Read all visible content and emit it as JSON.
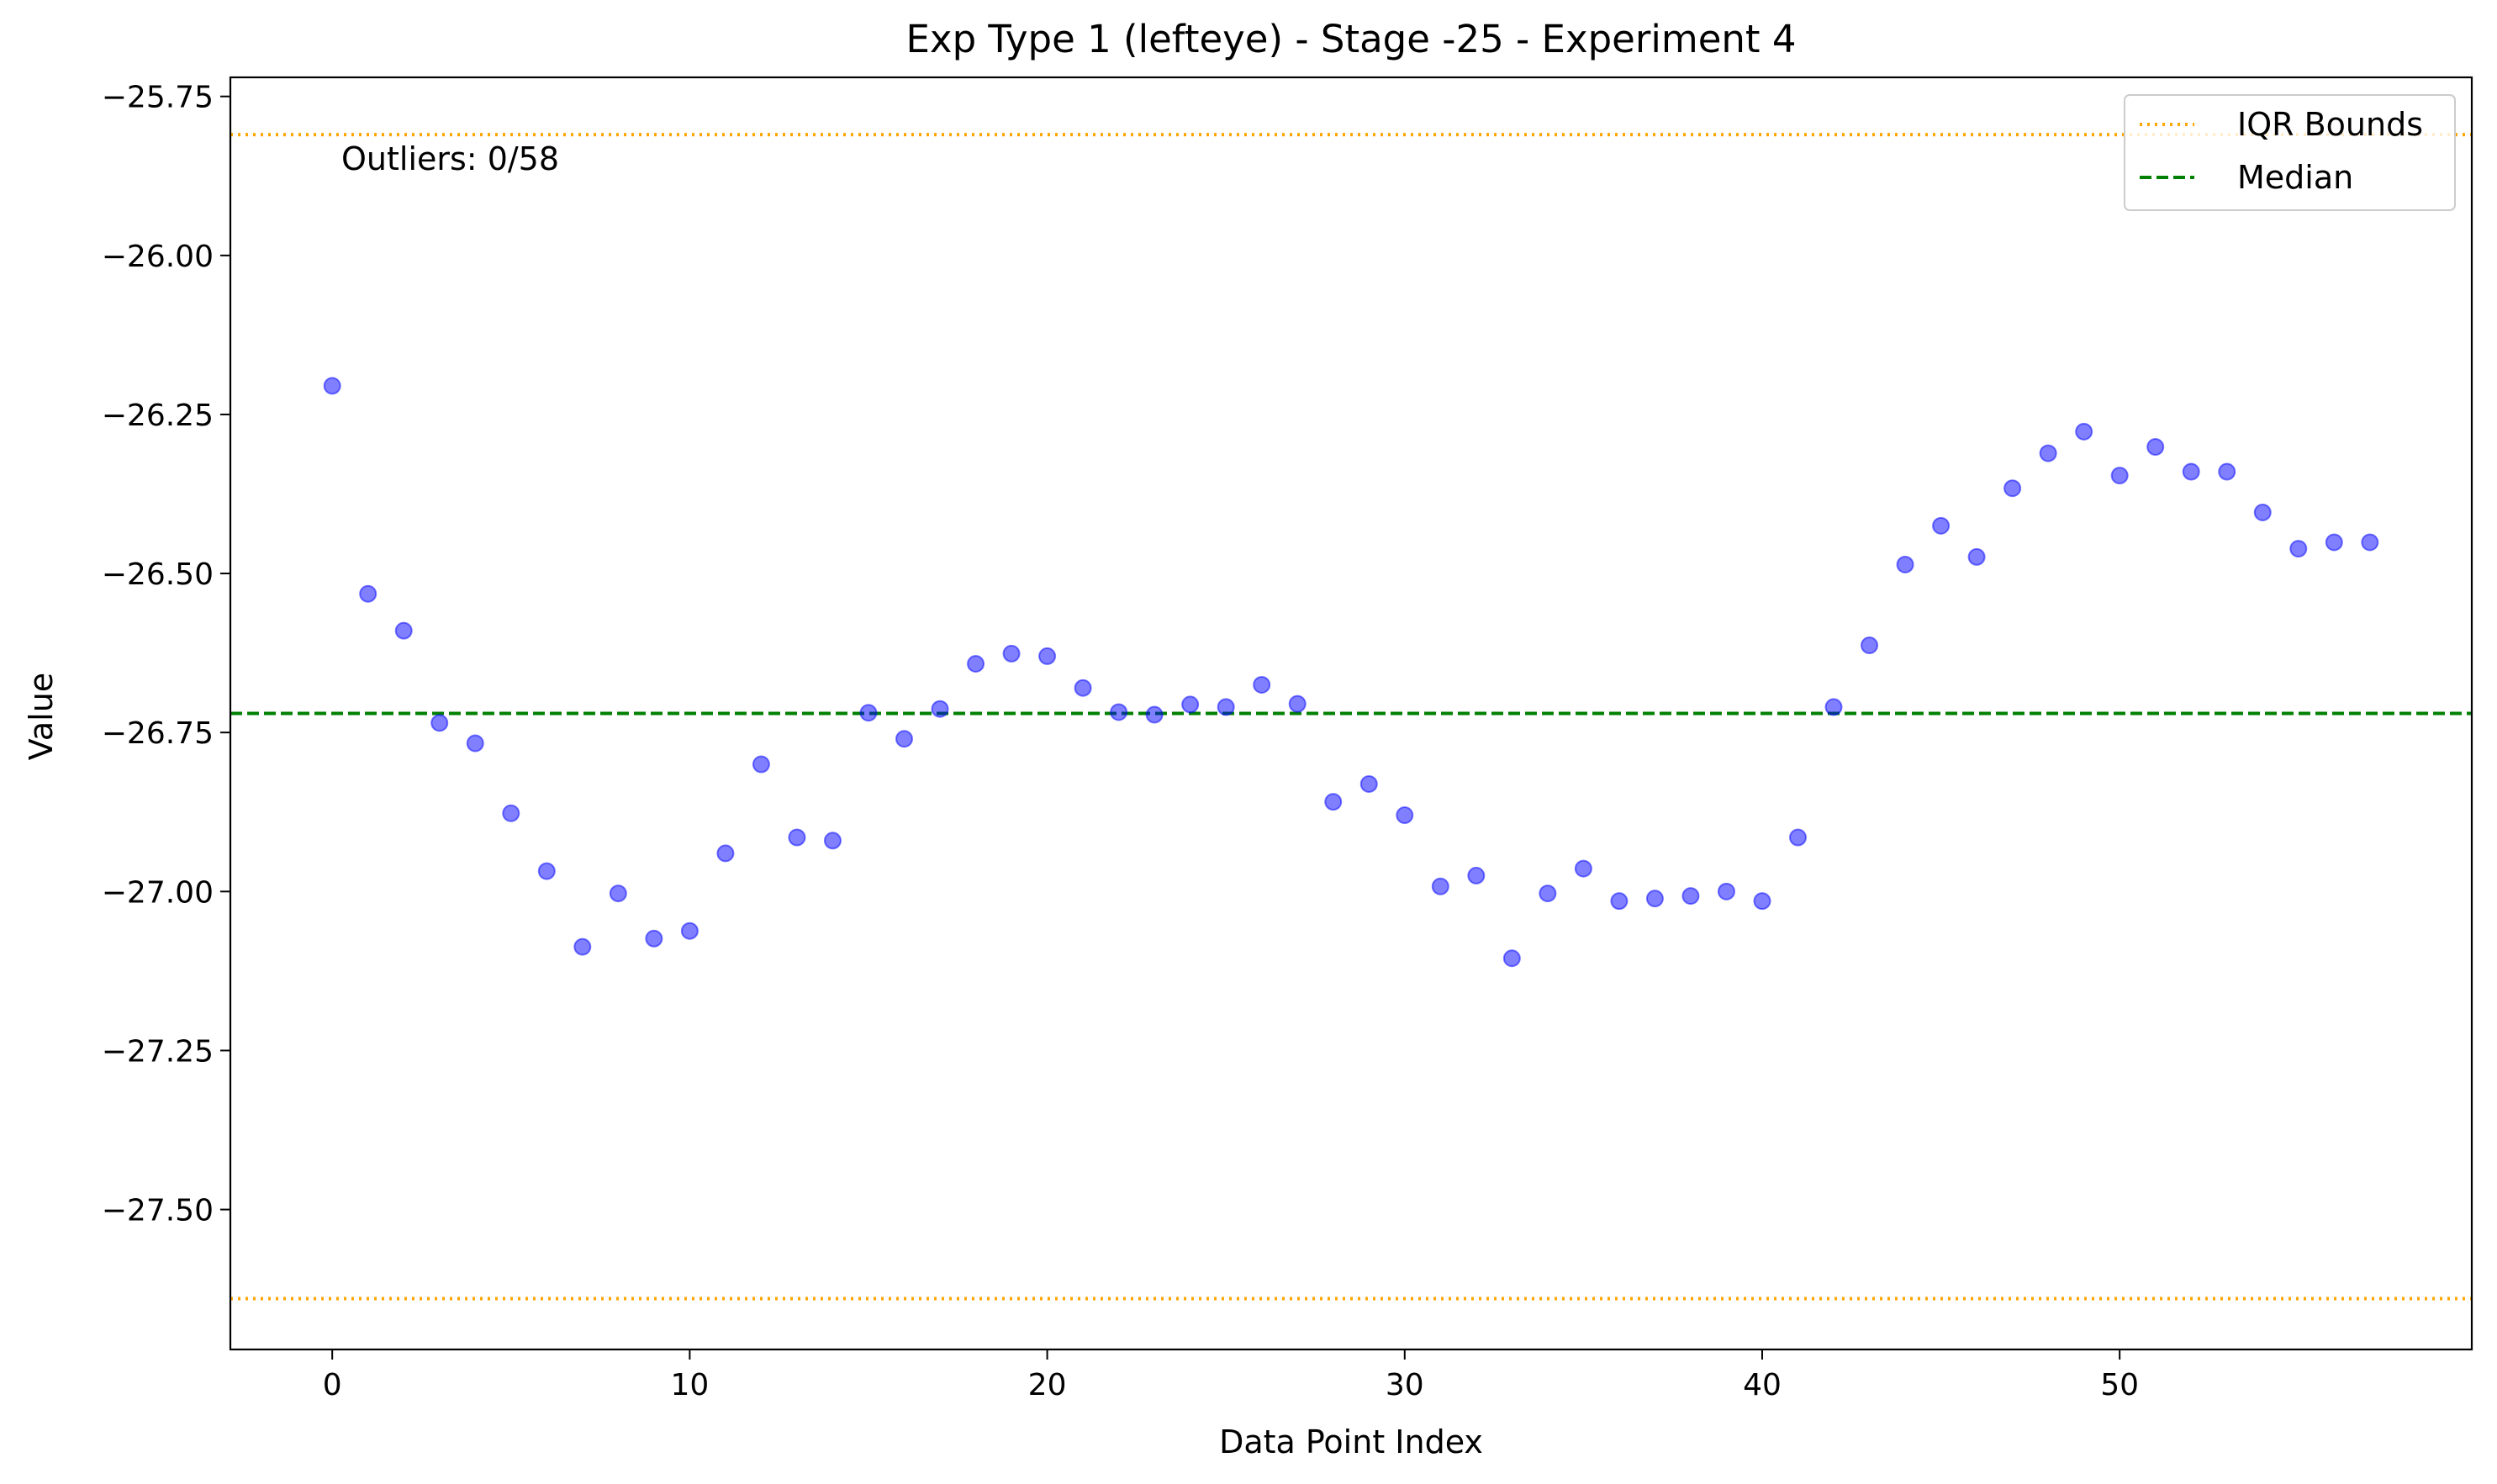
{
  "chart_data": {
    "type": "scatter",
    "title": "Exp Type 1 (lefteye) - Stage -25 - Experiment 4",
    "xlabel": "Data Point Index",
    "ylabel": "Value",
    "xlim": [
      -2.85,
      59.85
    ],
    "ylim": [
      -27.72,
      -25.72
    ],
    "xticks": [
      0,
      10,
      20,
      30,
      40,
      50
    ],
    "xtick_labels": [
      "0",
      "10",
      "20",
      "30",
      "40",
      "50"
    ],
    "yticks": [
      -25.75,
      -26.0,
      -26.25,
      -26.5,
      -26.75,
      -27.0,
      -27.25,
      -27.5
    ],
    "ytick_labels": [
      "−25.75",
      "−26.00",
      "−26.25",
      "−26.50",
      "−26.75",
      "−27.00",
      "−27.25",
      "−27.50"
    ],
    "grid": false,
    "legend_position": "top-right",
    "annotation": "Outliers: 0/58",
    "reference_lines": {
      "iqr_upper": -25.81,
      "iqr_lower": -27.64,
      "median": -26.72
    },
    "series": [
      {
        "name": "",
        "color": "#0000ff",
        "x": [
          0,
          1,
          2,
          3,
          4,
          5,
          6,
          7,
          8,
          9,
          10,
          11,
          12,
          13,
          14,
          15,
          16,
          17,
          18,
          19,
          20,
          21,
          22,
          23,
          24,
          25,
          26,
          27,
          28,
          29,
          30,
          31,
          32,
          33,
          34,
          35,
          36,
          37,
          38,
          39,
          40,
          41,
          42,
          43,
          44,
          45,
          46,
          47,
          48,
          49,
          50,
          51,
          52,
          53,
          54,
          55,
          56,
          57
        ],
        "y": [
          -26.205,
          -26.532,
          -26.59,
          -26.735,
          -26.767,
          -26.877,
          -26.968,
          -27.087,
          -27.003,
          -27.074,
          -27.062,
          -26.94,
          -26.8,
          -26.915,
          -26.92,
          -26.719,
          -26.76,
          -26.713,
          -26.642,
          -26.626,
          -26.63,
          -26.68,
          -26.718,
          -26.722,
          -26.706,
          -26.71,
          -26.675,
          -26.705,
          -26.859,
          -26.831,
          -26.88,
          -26.992,
          -26.975,
          -27.105,
          -27.003,
          -26.964,
          -27.015,
          -27.011,
          -27.007,
          -27.0,
          -27.015,
          -26.915,
          -26.71,
          -26.613,
          -26.486,
          -26.425,
          -26.474,
          -26.366,
          -26.311,
          -26.277,
          -26.346,
          -26.301,
          -26.34,
          -26.34,
          -26.404,
          -26.461,
          -26.451,
          -26.451
        ]
      }
    ],
    "legend": [
      {
        "label": "IQR Bounds",
        "color": "#ffa500",
        "style": "dotted"
      },
      {
        "label": "Median",
        "color": "#008000",
        "style": "dashed"
      }
    ]
  }
}
